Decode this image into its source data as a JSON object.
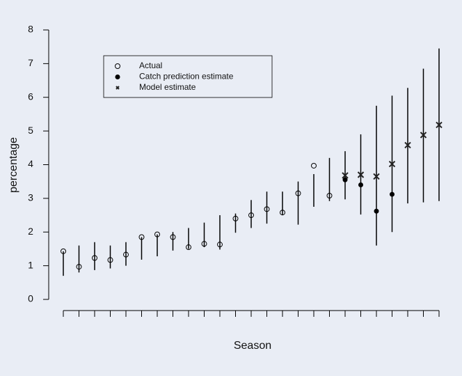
{
  "chart_data": {
    "type": "scatter",
    "xlabel": "Season",
    "ylabel": "percentage",
    "categories": [
      null,
      null,
      null,
      null,
      null,
      null,
      null,
      null,
      null,
      null,
      null,
      null,
      null,
      null,
      null,
      null,
      null,
      null,
      null,
      null,
      null,
      null,
      null,
      null,
      null
    ],
    "series": [
      {
        "name": "Actual",
        "color": "#000000",
        "marker": "open-circle",
        "values": [
          1.43,
          0.97,
          1.23,
          1.17,
          1.33,
          1.85,
          1.93,
          1.85,
          1.55,
          1.65,
          1.63,
          2.4,
          2.5,
          2.68,
          2.58,
          3.15,
          3.97,
          3.08,
          null,
          null,
          null,
          null,
          null,
          null,
          null
        ]
      },
      {
        "name": "Catch prediction estimate",
        "color": "#000000",
        "marker": "filled-circle",
        "values": [
          null,
          null,
          null,
          null,
          null,
          null,
          null,
          null,
          null,
          null,
          null,
          null,
          null,
          null,
          null,
          null,
          null,
          null,
          3.55,
          3.4,
          2.62,
          3.12,
          null,
          null,
          null
        ]
      },
      {
        "name": "Model estimate",
        "color": "#222222",
        "marker": "cross",
        "values": [
          null,
          null,
          null,
          null,
          null,
          null,
          null,
          null,
          null,
          null,
          null,
          null,
          null,
          null,
          null,
          null,
          null,
          null,
          3.68,
          3.7,
          3.65,
          4.02,
          4.58,
          4.88,
          5.18
        ]
      }
    ],
    "intervals": {
      "color": "#000000",
      "lower": [
        0.7,
        0.8,
        0.87,
        0.92,
        1.0,
        1.18,
        1.28,
        1.45,
        1.5,
        1.55,
        1.48,
        1.98,
        2.12,
        2.25,
        2.5,
        2.22,
        2.75,
        2.92,
        2.97,
        2.52,
        1.6,
        2.0,
        2.85,
        2.88,
        2.92
      ],
      "upper": [
        1.43,
        1.6,
        1.7,
        1.6,
        1.7,
        1.85,
        1.93,
        2.0,
        2.12,
        2.28,
        2.5,
        2.55,
        2.95,
        3.2,
        3.2,
        3.5,
        3.72,
        4.2,
        4.4,
        4.9,
        5.75,
        6.05,
        6.28,
        6.85,
        7.45
      ]
    },
    "ylim": [
      0,
      8
    ],
    "yticks": [
      0,
      1,
      2,
      3,
      4,
      5,
      6,
      7,
      8
    ],
    "grid": false
  }
}
